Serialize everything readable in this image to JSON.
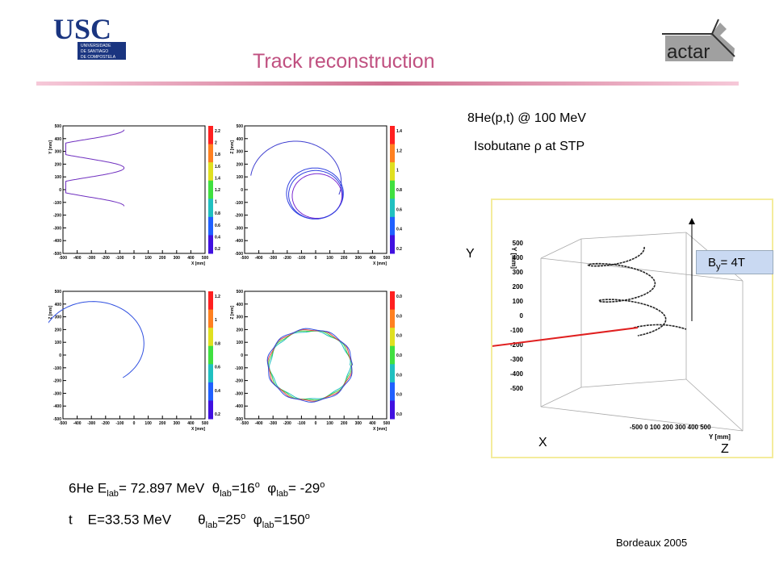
{
  "logos": {
    "usc_text": "USC",
    "usc_sub": [
      "UNIVERSIDADE",
      "DE SANTIAGO",
      "DE COMPOSTELA"
    ],
    "actar_text": "actar"
  },
  "title": "Track reconstruction",
  "reaction": "8He(p,t) @ 100 MeV",
  "gas": "Isobutane ρ at STP",
  "plots": {
    "xlabel": "X [mm]",
    "ylabel_top_left": "Y [mm]",
    "ylabel_other": "Z [mm]",
    "x_ticks": [
      "-500",
      "-400",
      "-300",
      "-200",
      "-100",
      "0",
      "100",
      "200",
      "300",
      "400",
      "500"
    ],
    "y_ticks": [
      "500",
      "400",
      "300",
      "200",
      "100",
      "0",
      "-100",
      "-200",
      "-300",
      "-400",
      "-500"
    ],
    "colorbars": [
      [
        "2.2",
        "2",
        "1.8",
        "1.6",
        "1.4",
        "1.2",
        "1",
        "0.8",
        "0.6",
        "0.4",
        "0.2"
      ],
      [
        "1.4",
        "1.2",
        "1",
        "0.8",
        "0.6",
        "0.4",
        "0.2"
      ],
      [
        "1.2",
        "1",
        "0.8",
        "0.6",
        "0.4",
        "0.2"
      ],
      [
        "0.0",
        "0.0",
        "0.0",
        "0.0",
        "0.0",
        "0.0",
        "0.0"
      ]
    ],
    "colors": [
      "#ff2020",
      "#ff8020",
      "#e0e020",
      "#40e040",
      "#20c0c0",
      "#2060ff",
      "#4010e0"
    ]
  },
  "plot3d": {
    "ylabel": "Y [mm]",
    "zlabel": "Y [mm]",
    "y_ticks": [
      "500",
      "400",
      "300",
      "200",
      "100",
      "0",
      "-100",
      "-200",
      "-300",
      "-400",
      "-500"
    ],
    "bottom_ticks": "-500 0 100 200 300 400 500",
    "axis_Y": "Y",
    "axis_X": "X",
    "axis_Z": "Z"
  },
  "field": {
    "B": "B",
    "sub": "y",
    "value": "= 4T"
  },
  "result1": {
    "particle": "6He E",
    "e_sub": "lab",
    "energy": "= 72.897  MeV",
    "theta": "θ",
    "theta_sub": "lab",
    "theta_val": "=16",
    "deg": "o",
    "phi": "φ",
    "phi_sub": "lab",
    "phi_val": "= -29"
  },
  "result2": {
    "particle": "t    E=33.53 MeV",
    "theta": "θ",
    "theta_sub": "lab",
    "theta_val": "=25",
    "deg": "o",
    "phi": "φ",
    "phi_sub": "lab",
    "phi_val": "=150"
  },
  "footer": "Bordeaux 2005"
}
